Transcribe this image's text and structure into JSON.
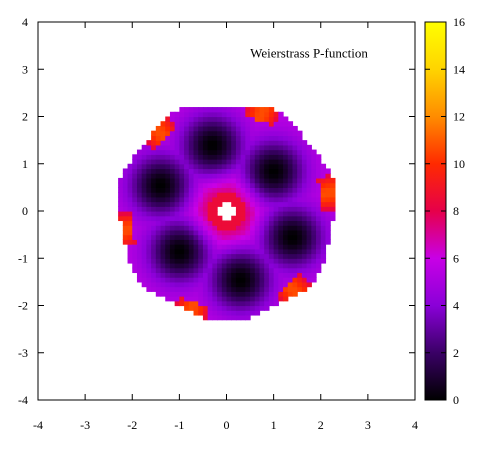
{
  "chart_data": {
    "type": "heatmap",
    "title": "Weierstrass P-function",
    "xlabel": "",
    "ylabel": "",
    "xlim": [
      -4,
      4
    ],
    "ylim": [
      -4,
      4
    ],
    "x_ticks": [
      -4,
      -3,
      -2,
      -1,
      0,
      1,
      2,
      3,
      4
    ],
    "y_ticks": [
      -4,
      -3,
      -2,
      -1,
      0,
      1,
      2,
      3,
      4
    ],
    "colorbar": {
      "range": [
        0,
        16
      ],
      "ticks": [
        0,
        2,
        4,
        6,
        8,
        10,
        12,
        14,
        16
      ],
      "palette": [
        "#000000",
        "#3a0066",
        "#8a00d8",
        "#c800e6",
        "#e6004a",
        "#ff2a00",
        "#ff8c00",
        "#ffd400",
        "#ffff00"
      ]
    },
    "domain": {
      "shape": "disk",
      "center": [
        0,
        0
      ],
      "radius": 2.3
    },
    "zeros": [
      [
        -0.3,
        1.4
      ],
      [
        1.0,
        0.85
      ],
      [
        1.4,
        -0.55
      ],
      [
        0.3,
        -1.45
      ],
      [
        -1.0,
        -0.85
      ],
      [
        -1.4,
        0.55
      ]
    ],
    "pole": {
      "center": [
        0,
        0
      ],
      "ring_radius": 0.33
    },
    "grid": false,
    "grid_resolution": 0.1
  }
}
